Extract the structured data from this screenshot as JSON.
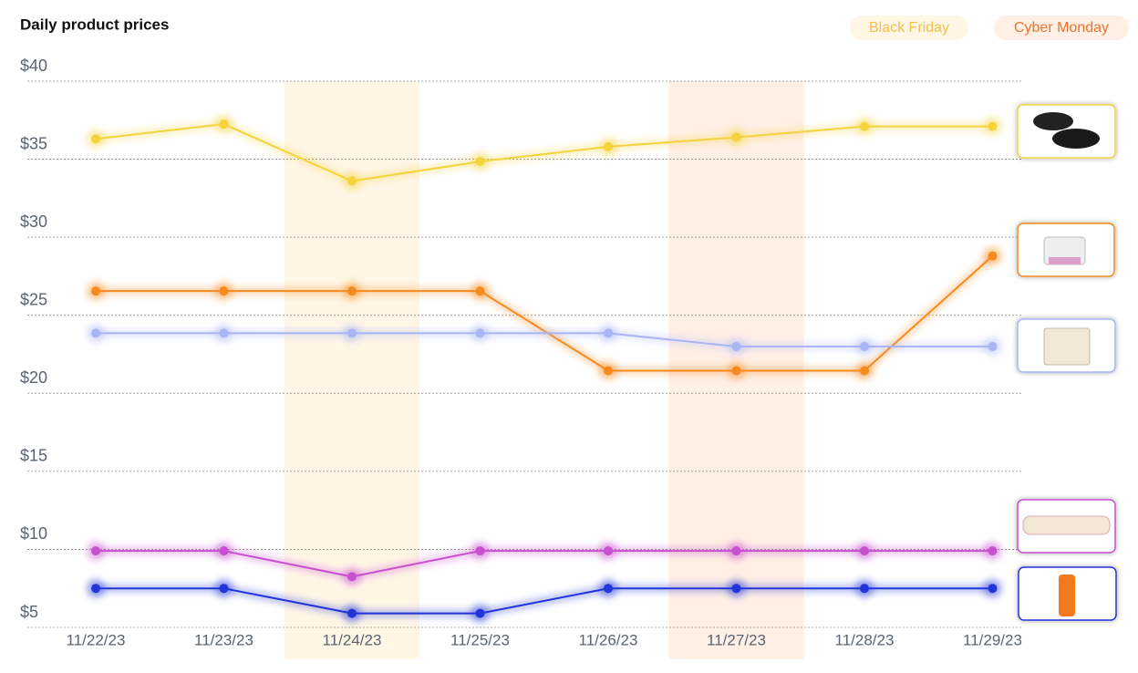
{
  "chart_data": {
    "type": "line",
    "title": "Daily product prices",
    "categories": [
      "11/22/23",
      "11/23/23",
      "11/24/23",
      "11/25/23",
      "11/26/23",
      "11/27/23",
      "11/28/23",
      "11/29/23"
    ],
    "series": [
      {
        "color": "#f5d33c",
        "values": [
          36.3,
          37.25,
          33.6,
          34.85,
          35.8,
          36.4,
          37.1,
          37.1
        ]
      },
      {
        "color": "#f58a1f",
        "values": [
          26.55,
          26.55,
          26.55,
          26.55,
          21.45,
          21.45,
          21.45,
          28.8
        ]
      },
      {
        "color": "#a9b5f5",
        "values": [
          23.85,
          23.85,
          23.85,
          23.85,
          23.85,
          23.0,
          23.0,
          23.0
        ]
      },
      {
        "color": "#c84fcf",
        "values": [
          9.9,
          9.9,
          8.25,
          9.9,
          9.9,
          9.9,
          9.9,
          9.9
        ]
      },
      {
        "color": "#2236d8",
        "values": [
          7.5,
          7.5,
          5.9,
          5.9,
          7.5,
          7.5,
          7.5,
          7.5
        ]
      }
    ],
    "ylim": [
      5,
      40
    ],
    "yticks": [
      {
        "value": 5,
        "label": "$5"
      },
      {
        "value": 10,
        "label": "$10"
      },
      {
        "value": 15,
        "label": "$15"
      },
      {
        "value": 20,
        "label": "$20"
      },
      {
        "value": 25,
        "label": "$25"
      },
      {
        "value": 30,
        "label": "$30"
      },
      {
        "value": 35,
        "label": "$35"
      },
      {
        "value": 40,
        "label": "$40"
      }
    ],
    "grid": true,
    "highlights": [
      {
        "label": "Black Friday",
        "category": "11/24/23",
        "color": "#f5c04a",
        "background": "#fff6e6"
      },
      {
        "label": "Cyber Monday",
        "category": "11/27/23",
        "color": "#e8772a",
        "background": "#ffefe5"
      }
    ]
  }
}
